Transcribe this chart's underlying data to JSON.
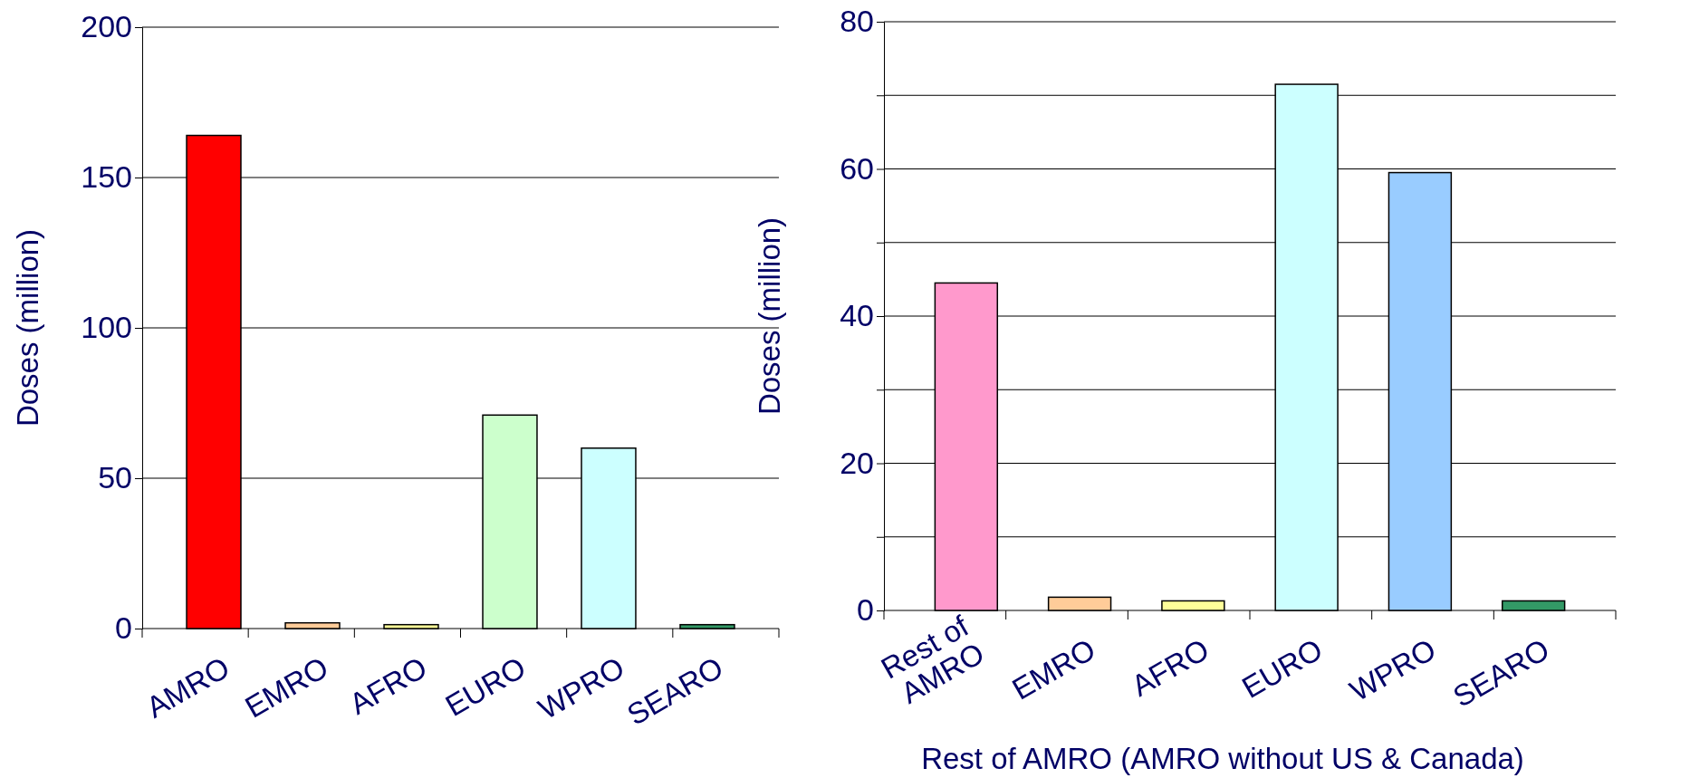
{
  "chart_data": [
    {
      "type": "bar",
      "ylabel": "Doses (million)",
      "categories": [
        "AMRO",
        "EMRO",
        "AFRO",
        "EURO",
        "WPRO",
        "SEARO"
      ],
      "values": [
        164,
        1.9,
        1.3,
        71,
        60,
        1.3
      ],
      "colors": [
        "#ff0000",
        "#ffcc99",
        "#ffff99",
        "#ccffcc",
        "#ccffff",
        "#339966"
      ],
      "ylim": [
        0,
        200
      ],
      "yticks": [
        0,
        50,
        100,
        150,
        200
      ],
      "grid": "y"
    },
    {
      "type": "bar",
      "ylabel": "Doses (million)",
      "xlabel": "Rest of AMRO (AMRO without US & Canada)",
      "categories": [
        "Rest of AMRO",
        "EMRO",
        "AFRO",
        "EURO",
        "WPRO",
        "SEARO"
      ],
      "values": [
        44.5,
        1.8,
        1.3,
        71.5,
        59.5,
        1.3
      ],
      "colors": [
        "#ff99cc",
        "#ffcc99",
        "#ffff99",
        "#ccffff",
        "#99ccff",
        "#339966"
      ],
      "ylim": [
        0,
        80
      ],
      "yticks": [
        0,
        {
          "value": 10,
          "label": null
        },
        20,
        {
          "value": 30,
          "label": null
        },
        40,
        {
          "value": 50,
          "label": null
        },
        60,
        {
          "value": 70,
          "label": null
        },
        80
      ],
      "grid": "y"
    }
  ]
}
